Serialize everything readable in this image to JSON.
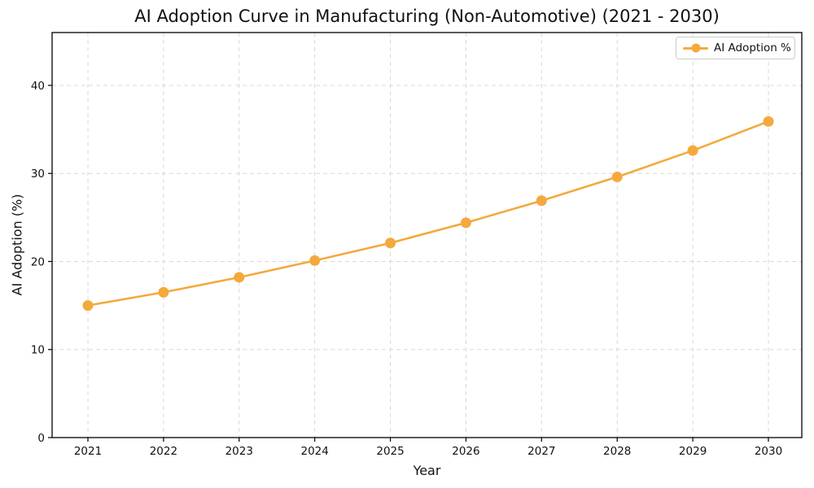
{
  "chart_data": {
    "type": "line",
    "title": "AI Adoption Curve in Manufacturing (Non-Automotive) (2021 - 2030)",
    "xlabel": "Year",
    "ylabel": "AI Adoption (%)",
    "categories": [
      "2021",
      "2022",
      "2023",
      "2024",
      "2025",
      "2026",
      "2027",
      "2028",
      "2029",
      "2030"
    ],
    "series": [
      {
        "name": "AI Adoption %",
        "values": [
          15.0,
          16.5,
          18.2,
          20.1,
          22.1,
          24.4,
          26.9,
          29.6,
          32.6,
          35.9
        ],
        "color": "#F4A93D"
      }
    ],
    "yticks": [
      0,
      10,
      20,
      30,
      40
    ],
    "ylim": [
      0,
      46
    ],
    "grid": true,
    "grid_style": "dashed",
    "legend_position": "upper-right",
    "colors": {
      "accent": "#F4A93D",
      "grid": "#d8d8d8",
      "axis": "#000000",
      "text": "#111111",
      "legend_border": "#cccccc",
      "background": "#ffffff"
    }
  }
}
